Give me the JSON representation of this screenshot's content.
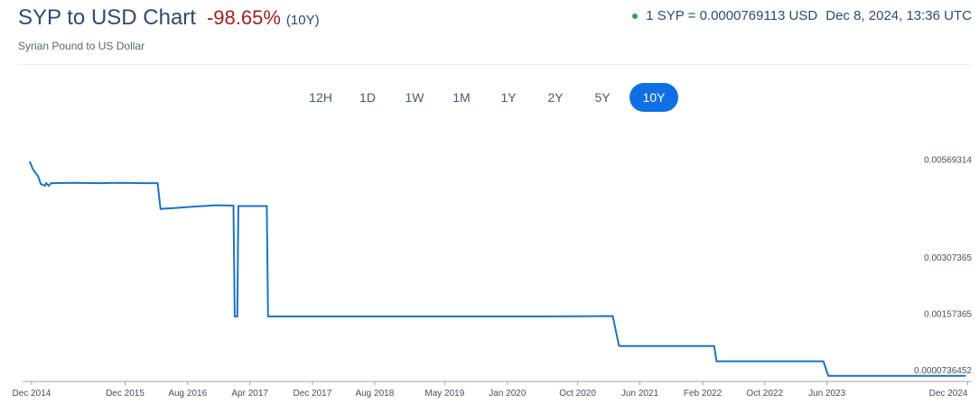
{
  "header": {
    "title": "SYP to USD Chart",
    "change": "-98.65%",
    "period": "(10Y)",
    "subtitle": "Syrian Pound to US Dollar",
    "rate": "1 SYP = 0.0000769113 USD",
    "timestamp": "Dec 8, 2024, 13:36 UTC"
  },
  "colors": {
    "line": "#1a73c8",
    "active_button": "#0f6fe3",
    "change_negative": "#a32020",
    "live_dot": "#27a844"
  },
  "ranges": [
    {
      "label": "12H",
      "active": false
    },
    {
      "label": "1D",
      "active": false
    },
    {
      "label": "1W",
      "active": false
    },
    {
      "label": "1M",
      "active": false
    },
    {
      "label": "1Y",
      "active": false
    },
    {
      "label": "2Y",
      "active": false
    },
    {
      "label": "5Y",
      "active": false
    },
    {
      "label": "10Y",
      "active": true
    }
  ],
  "chart_data": {
    "type": "line",
    "title": "SYP to USD Chart",
    "series": [
      {
        "x": [
          "2014-12-08",
          "2014-12-20",
          "2015-01-10",
          "2015-01-20",
          "2015-02-05",
          "2015-02-10",
          "2015-02-20",
          "2015-03-01",
          "2015-06-01",
          "2015-09-01",
          "2015-12-01",
          "2016-03-01",
          "2016-04-20",
          "2016-05-01",
          "2016-05-02",
          "2016-06-01",
          "2016-06-10",
          "2016-09-01",
          "2016-12-01",
          "2017-02-10",
          "2017-02-15",
          "2017-02-25",
          "2017-03-01",
          "2017-06-20",
          "2017-06-25",
          "2017-07-01",
          "2018-06-01",
          "2019-06-01",
          "2020-06-01",
          "2021-03-01",
          "2021-03-25",
          "2021-04-01",
          "2021-10-01",
          "2022-04-01",
          "2022-04-10",
          "2022-10-01",
          "2023-06-01",
          "2023-06-20",
          "2023-07-01",
          "2024-12-08"
        ],
        "y": [
          0.0058,
          0.0056,
          0.0054,
          0.0052,
          0.00515,
          0.00522,
          0.00515,
          0.00522,
          0.00523,
          0.00522,
          0.00523,
          0.00522,
          0.00522,
          0.00454,
          0.00453,
          0.00455,
          0.00455,
          0.00459,
          0.00463,
          0.00462,
          0.00166,
          0.00166,
          0.00461,
          0.00461,
          0.00166,
          0.00166,
          0.00166,
          0.00166,
          0.00166,
          0.00167,
          0.00088,
          0.00087,
          0.00087,
          0.00087,
          0.000464,
          0.000464,
          0.000464,
          7.69e-05,
          7.69e-05,
          7.69113e-05
        ]
      }
    ],
    "y_ticks": [
      "0.00569314",
      "0.00307365",
      "0.00157365",
      "0.0000736452"
    ],
    "y_tick_values": [
      0.00569314,
      0.00307365,
      0.00157365,
      7.36452e-05
    ],
    "x_ticks": [
      "Dec 2014",
      "Dec 2015",
      "Aug 2016",
      "Apr 2017",
      "Dec 2017",
      "Aug 2018",
      "May 2019",
      "Jan 2020",
      "Oct 2020",
      "Jun 2021",
      "Feb 2022",
      "Oct 2022",
      "Jun 2023",
      "Dec 2024"
    ],
    "x_tick_dates": [
      "2014-12-15",
      "2015-12-15",
      "2016-08-15",
      "2017-04-15",
      "2017-12-15",
      "2018-08-15",
      "2019-05-15",
      "2020-01-15",
      "2020-10-15",
      "2021-06-15",
      "2022-02-15",
      "2022-10-15",
      "2023-06-15",
      "2024-12-15"
    ],
    "x_range": [
      "2014-11-10",
      "2024-12-31"
    ],
    "ylim": [
      -7.6e-05,
      0.0065
    ],
    "grid": false,
    "legend": "none"
  }
}
